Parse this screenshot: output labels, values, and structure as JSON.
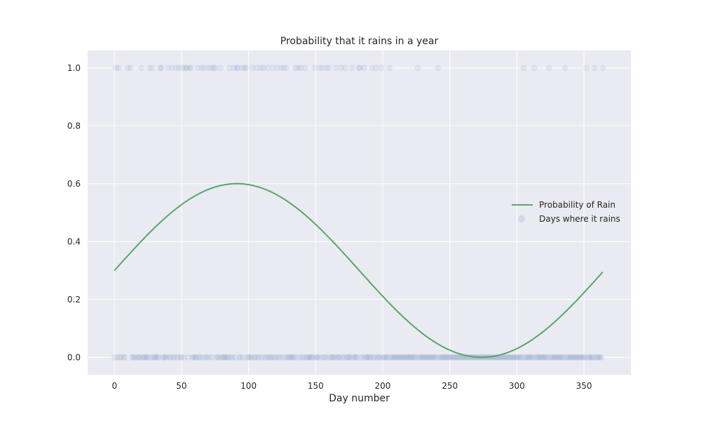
{
  "chart_data": {
    "type": "scatter",
    "title": "Probability that it rains in a year",
    "xlabel": "Day number",
    "ylabel": "",
    "xlim": [
      -20,
      385
    ],
    "ylim": [
      -0.06,
      1.06
    ],
    "xticks": [
      0,
      50,
      100,
      150,
      200,
      250,
      300,
      350
    ],
    "yticks": [
      0.0,
      0.2,
      0.4,
      0.6,
      0.8,
      1.0
    ],
    "ytick_labels": [
      "0.0",
      "0.2",
      "0.4",
      "0.6",
      "0.8",
      "1.0"
    ],
    "grid": true,
    "legend_position": "center-right",
    "colors": {
      "background": "#eaeaf2",
      "grid": "#ffffff",
      "line": "#55a868",
      "points": "#4c72b0"
    },
    "series": [
      {
        "name": "Probability of Rain",
        "kind": "line",
        "function": "0.3 + 0.3*sin(2*pi*x/365)",
        "x_range": [
          0,
          364
        ],
        "samples": [
          [
            0,
            0.3
          ],
          [
            30,
            0.45
          ],
          [
            60,
            0.56
          ],
          [
            91,
            0.6
          ],
          [
            120,
            0.57
          ],
          [
            150,
            0.46
          ],
          [
            182,
            0.3
          ],
          [
            210,
            0.17
          ],
          [
            240,
            0.06
          ],
          [
            273,
            0.0
          ],
          [
            300,
            0.04
          ],
          [
            330,
            0.15
          ],
          [
            364,
            0.3
          ]
        ]
      },
      {
        "name": "Days where it rains",
        "kind": "scatter",
        "y1_days": [
          1,
          3,
          10,
          12,
          20,
          26,
          28,
          34,
          35,
          40,
          43,
          46,
          48,
          51,
          53,
          54,
          56,
          57,
          62,
          65,
          67,
          70,
          72,
          74,
          75,
          79,
          86,
          89,
          91,
          92,
          95,
          97,
          98,
          103,
          106,
          109,
          111,
          114,
          118,
          121,
          124,
          126,
          128,
          135,
          137,
          139,
          142,
          149,
          153,
          155,
          158,
          160,
          165,
          169,
          172,
          177,
          182,
          183,
          186,
          192,
          195,
          199,
          205,
          226,
          241,
          305,
          313,
          324,
          336,
          352,
          358,
          364
        ],
        "y0_days": [
          0,
          2,
          4,
          5,
          7,
          8,
          13,
          14,
          15,
          17,
          18,
          19,
          21,
          22,
          23,
          24,
          25,
          27,
          29,
          30,
          31,
          32,
          33,
          36,
          37,
          38,
          39,
          41,
          42,
          44,
          45,
          47,
          49,
          50,
          52,
          55,
          58,
          59,
          60,
          61,
          63,
          64,
          66,
          68,
          69,
          71,
          73,
          76,
          77,
          78,
          80,
          81,
          82,
          83,
          84,
          85,
          87,
          88,
          90,
          93,
          94,
          96,
          99,
          100,
          101,
          102,
          104,
          105,
          107,
          108,
          110,
          112,
          113,
          115,
          116,
          117,
          119,
          120,
          122,
          123,
          125,
          127,
          129,
          130,
          131,
          132,
          133,
          134,
          136,
          138,
          140,
          141,
          143,
          144,
          145,
          146,
          147,
          148,
          150,
          151,
          152,
          154,
          156,
          157,
          159,
          161,
          162,
          163,
          164,
          166,
          167,
          168,
          170,
          171,
          173,
          174,
          175,
          176,
          178,
          179,
          180,
          181,
          184,
          185,
          187,
          188,
          189,
          190,
          191,
          193,
          194,
          196,
          197,
          198,
          200,
          201,
          202,
          203,
          204,
          206,
          207,
          208,
          209,
          210,
          211,
          212,
          213,
          214,
          215,
          216,
          217,
          218,
          219,
          220,
          221,
          222,
          223,
          224,
          225,
          227,
          228,
          229,
          230,
          231,
          232,
          233,
          234,
          235,
          236,
          237,
          238,
          239,
          240,
          242,
          243,
          244,
          245,
          246,
          247,
          248,
          249,
          250,
          251,
          252,
          253,
          254,
          255,
          256,
          257,
          258,
          259,
          260,
          261,
          262,
          263,
          264,
          265,
          266,
          267,
          268,
          269,
          270,
          271,
          272,
          273,
          274,
          275,
          276,
          277,
          278,
          279,
          280,
          281,
          282,
          283,
          284,
          285,
          286,
          287,
          288,
          289,
          290,
          291,
          292,
          293,
          294,
          295,
          296,
          297,
          298,
          299,
          300,
          301,
          302,
          303,
          304,
          306,
          307,
          308,
          309,
          310,
          311,
          312,
          314,
          315,
          316,
          317,
          318,
          319,
          320,
          321,
          322,
          323,
          325,
          326,
          327,
          328,
          329,
          330,
          331,
          332,
          333,
          334,
          335,
          337,
          338,
          339,
          340,
          341,
          342,
          343,
          344,
          345,
          346,
          347,
          348,
          349,
          350,
          351,
          353,
          354,
          355,
          356,
          357,
          359,
          360,
          361,
          362,
          363
        ]
      }
    ]
  }
}
